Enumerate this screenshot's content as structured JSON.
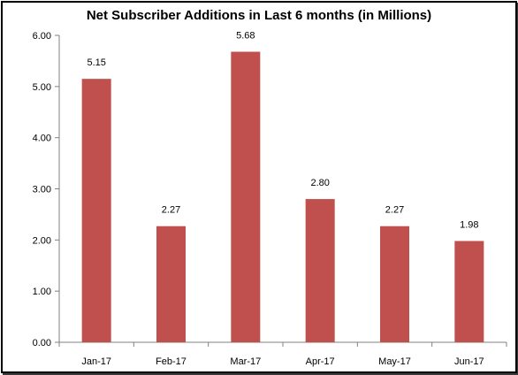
{
  "chart_data": {
    "type": "bar",
    "title": "Net Subscriber Additions in Last 6 months (in Millions)",
    "xlabel": "",
    "ylabel": "",
    "categories": [
      "Jan-17",
      "Feb-17",
      "Mar-17",
      "Apr-17",
      "May-17",
      "Jun-17"
    ],
    "values": [
      5.15,
      2.27,
      5.68,
      2.8,
      2.27,
      1.98
    ],
    "data_labels": [
      "5.15",
      "2.27",
      "5.68",
      "2.80",
      "2.27",
      "1.98"
    ],
    "ylim": [
      0,
      6
    ],
    "yticks": [
      "0.00",
      "1.00",
      "2.00",
      "3.00",
      "4.00",
      "5.00",
      "6.00"
    ],
    "grid": false,
    "legend": "none",
    "bar_color": "#c0504d"
  }
}
